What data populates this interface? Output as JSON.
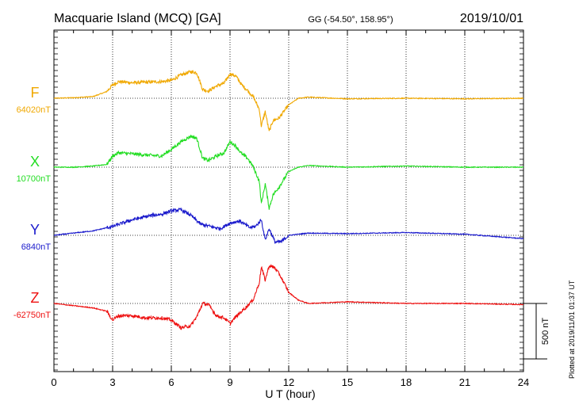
{
  "header": {
    "station": "Macquarie Island (MCQ)  [GA]",
    "coords": "GG (-54.50°, 158.95°)",
    "date": "2019/10/01"
  },
  "footer": {
    "plotted": "Plotted at 2019/11/01 01:37 UT"
  },
  "chart_data": {
    "type": "line",
    "xlabel": "U T (hour)",
    "xlim": [
      0,
      24
    ],
    "xticks": [
      "0",
      "3",
      "6",
      "9",
      "12",
      "15",
      "18",
      "21",
      "24"
    ],
    "ylabel": "",
    "scale_bar_label": "500 nT",
    "scale_bar_nT": 500,
    "grid": true,
    "series": [
      {
        "name": "F",
        "baseline_label": "64020nT",
        "color": "#f0a800",
        "x": [
          0,
          1,
          2,
          2.7,
          3,
          3.3,
          4,
          4.7,
          5.5,
          6,
          6.5,
          7,
          7.3,
          7.6,
          7.9,
          8.3,
          8.7,
          9,
          9.3,
          9.6,
          9.9,
          10.2,
          10.5,
          10.6,
          10.8,
          11,
          11.2,
          11.5,
          12,
          12.5,
          13,
          15,
          18,
          21,
          24
        ],
        "y": [
          0,
          5,
          15,
          60,
          120,
          150,
          140,
          145,
          150,
          160,
          210,
          240,
          230,
          80,
          65,
          110,
          135,
          220,
          200,
          120,
          70,
          10,
          -100,
          -250,
          -120,
          -300,
          -200,
          -180,
          -60,
          0,
          10,
          -5,
          0,
          -5,
          0
        ]
      },
      {
        "name": "X",
        "baseline_label": "10700nT",
        "color": "#22dd22",
        "x": [
          0,
          1,
          2,
          2.7,
          3,
          3.3,
          4,
          4.7,
          5.5,
          6,
          6.5,
          7,
          7.3,
          7.6,
          7.9,
          8.3,
          8.7,
          9,
          9.3,
          9.6,
          9.9,
          10.2,
          10.5,
          10.6,
          10.8,
          11,
          11.2,
          11.5,
          12,
          12.5,
          13,
          15,
          18,
          21,
          24
        ],
        "y": [
          0,
          0,
          10,
          25,
          100,
          130,
          120,
          110,
          100,
          160,
          230,
          280,
          260,
          80,
          60,
          100,
          130,
          230,
          190,
          120,
          80,
          0,
          -130,
          -330,
          -150,
          -370,
          -250,
          -180,
          -40,
          0,
          15,
          0,
          10,
          0,
          0
        ]
      },
      {
        "name": "Y",
        "baseline_label": "6840nT",
        "color": "#1a1acc",
        "x": [
          0,
          1,
          2,
          3,
          4,
          5,
          5.5,
          6,
          6.5,
          7,
          7.5,
          8,
          8.5,
          9,
          9.5,
          10,
          10.3,
          10.6,
          10.8,
          11,
          11.3,
          11.6,
          12,
          13,
          15,
          18,
          21,
          24
        ],
        "y": [
          0,
          20,
          40,
          80,
          140,
          180,
          190,
          220,
          230,
          180,
          100,
          80,
          60,
          110,
          130,
          70,
          80,
          140,
          -40,
          60,
          -60,
          -60,
          0,
          20,
          15,
          25,
          10,
          -30
        ]
      },
      {
        "name": "Z",
        "baseline_label": "-62750nT",
        "color": "#ee1111",
        "x": [
          0,
          1,
          2,
          2.7,
          3,
          3.3,
          4,
          4.7,
          5.5,
          6,
          6.5,
          7,
          7.3,
          7.6,
          7.9,
          8.3,
          8.7,
          9,
          9.3,
          9.6,
          9.9,
          10.2,
          10.5,
          10.6,
          10.8,
          11,
          11.3,
          11.6,
          12,
          12.5,
          13,
          15,
          18,
          21,
          24
        ],
        "y": [
          0,
          -20,
          -40,
          -70,
          -150,
          -110,
          -110,
          -130,
          -130,
          -150,
          -220,
          -200,
          -120,
          0,
          -10,
          -110,
          -130,
          -180,
          -120,
          -70,
          -20,
          40,
          190,
          330,
          210,
          340,
          320,
          240,
          100,
          30,
          0,
          15,
          0,
          0,
          -10
        ]
      }
    ]
  }
}
